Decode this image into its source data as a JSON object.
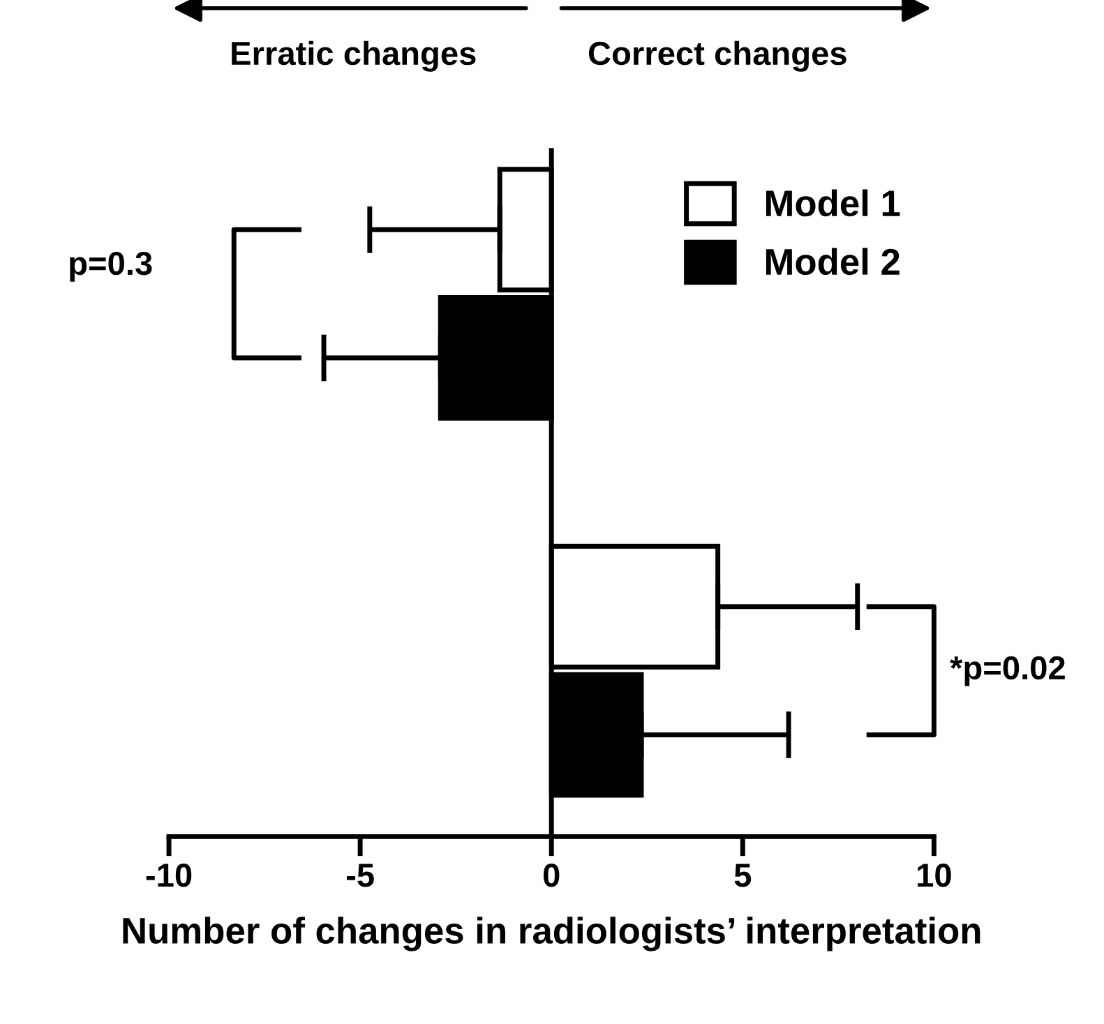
{
  "chart_data": {
    "type": "bar",
    "orientation": "horizontal",
    "categories": [
      null,
      null
    ],
    "series": [
      {
        "name": "Model 1",
        "color": "#ffffff",
        "values": [
          -1.35,
          4.35
        ],
        "errors": [
          [
            -4.75,
            -1.35
          ],
          [
            4.35,
            8.0
          ]
        ]
      },
      {
        "name": "Model 2",
        "color": "#000000",
        "values": [
          -2.9,
          2.35
        ],
        "errors": [
          [
            -5.95,
            -2.9
          ],
          [
            2.35,
            6.2
          ]
        ]
      }
    ],
    "xlabel": "Number of changes in radiologists’ interpretation",
    "xlim": [
      -10,
      10
    ],
    "xticks": [
      -10,
      -5,
      0,
      5,
      10
    ],
    "tick_labels": "x",
    "legend": "top right",
    "annotations": [
      "Erratic changes",
      "Correct changes",
      "p=0.3",
      "*p=0.02"
    ]
  }
}
